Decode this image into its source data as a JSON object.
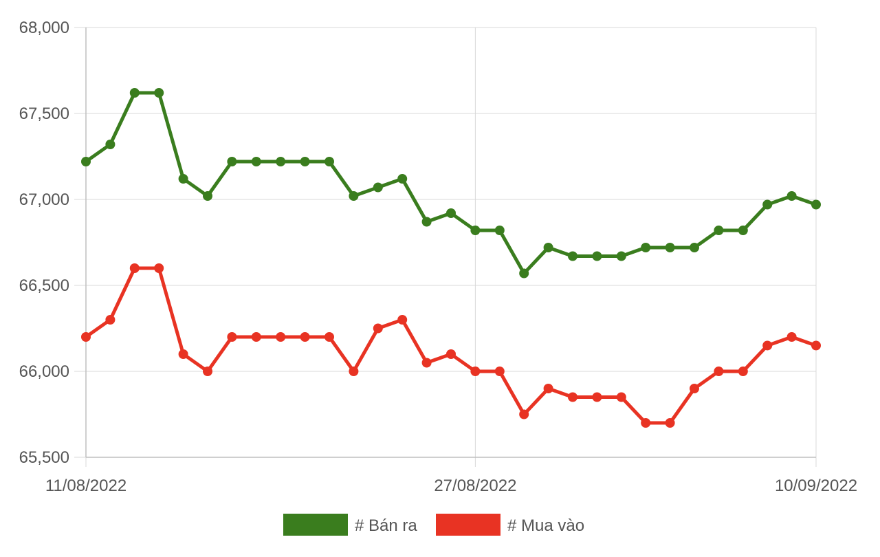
{
  "chart_data": {
    "type": "line",
    "x": [
      "11/08/2022",
      "12/08/2022",
      "13/08/2022",
      "14/08/2022",
      "15/08/2022",
      "16/08/2022",
      "17/08/2022",
      "18/08/2022",
      "19/08/2022",
      "20/08/2022",
      "21/08/2022",
      "22/08/2022",
      "23/08/2022",
      "24/08/2022",
      "25/08/2022",
      "26/08/2022",
      "27/08/2022",
      "28/08/2022",
      "29/08/2022",
      "30/08/2022",
      "31/08/2022",
      "01/09/2022",
      "02/09/2022",
      "03/09/2022",
      "04/09/2022",
      "05/09/2022",
      "06/09/2022",
      "07/09/2022",
      "08/09/2022",
      "09/09/2022",
      "10/09/2022"
    ],
    "x_tick_labels": [
      "11/08/2022",
      "27/08/2022",
      "10/09/2022"
    ],
    "series": [
      {
        "name": "# Bán ra",
        "color": "#3a7d1e",
        "values": [
          67220,
          67320,
          67620,
          67620,
          67120,
          67020,
          67220,
          67220,
          67220,
          67220,
          67220,
          67020,
          67070,
          67120,
          66870,
          66920,
          66820,
          66820,
          66570,
          66720,
          66670,
          66670,
          66670,
          66720,
          66720,
          66720,
          66820,
          66820,
          66970,
          67020,
          66970
        ]
      },
      {
        "name": "# Mua vào",
        "color": "#e83323",
        "values": [
          66200,
          66300,
          66600,
          66600,
          66100,
          66000,
          66200,
          66200,
          66200,
          66200,
          66200,
          66000,
          66250,
          66300,
          66050,
          66100,
          66000,
          66000,
          65750,
          65900,
          65850,
          65850,
          65850,
          65700,
          65700,
          65900,
          66000,
          66000,
          66150,
          66200,
          66150
        ]
      }
    ],
    "ylim": [
      65500,
      68000
    ],
    "y_ticks": [
      "68,000",
      "67,500",
      "67,000",
      "66,500",
      "66,000",
      "65,500"
    ],
    "y_tick_values": [
      68000,
      67500,
      67000,
      66500,
      66000,
      65500
    ],
    "title": "",
    "xlabel": "",
    "ylabel": "",
    "grid": true,
    "legend_position": "bottom-center"
  }
}
